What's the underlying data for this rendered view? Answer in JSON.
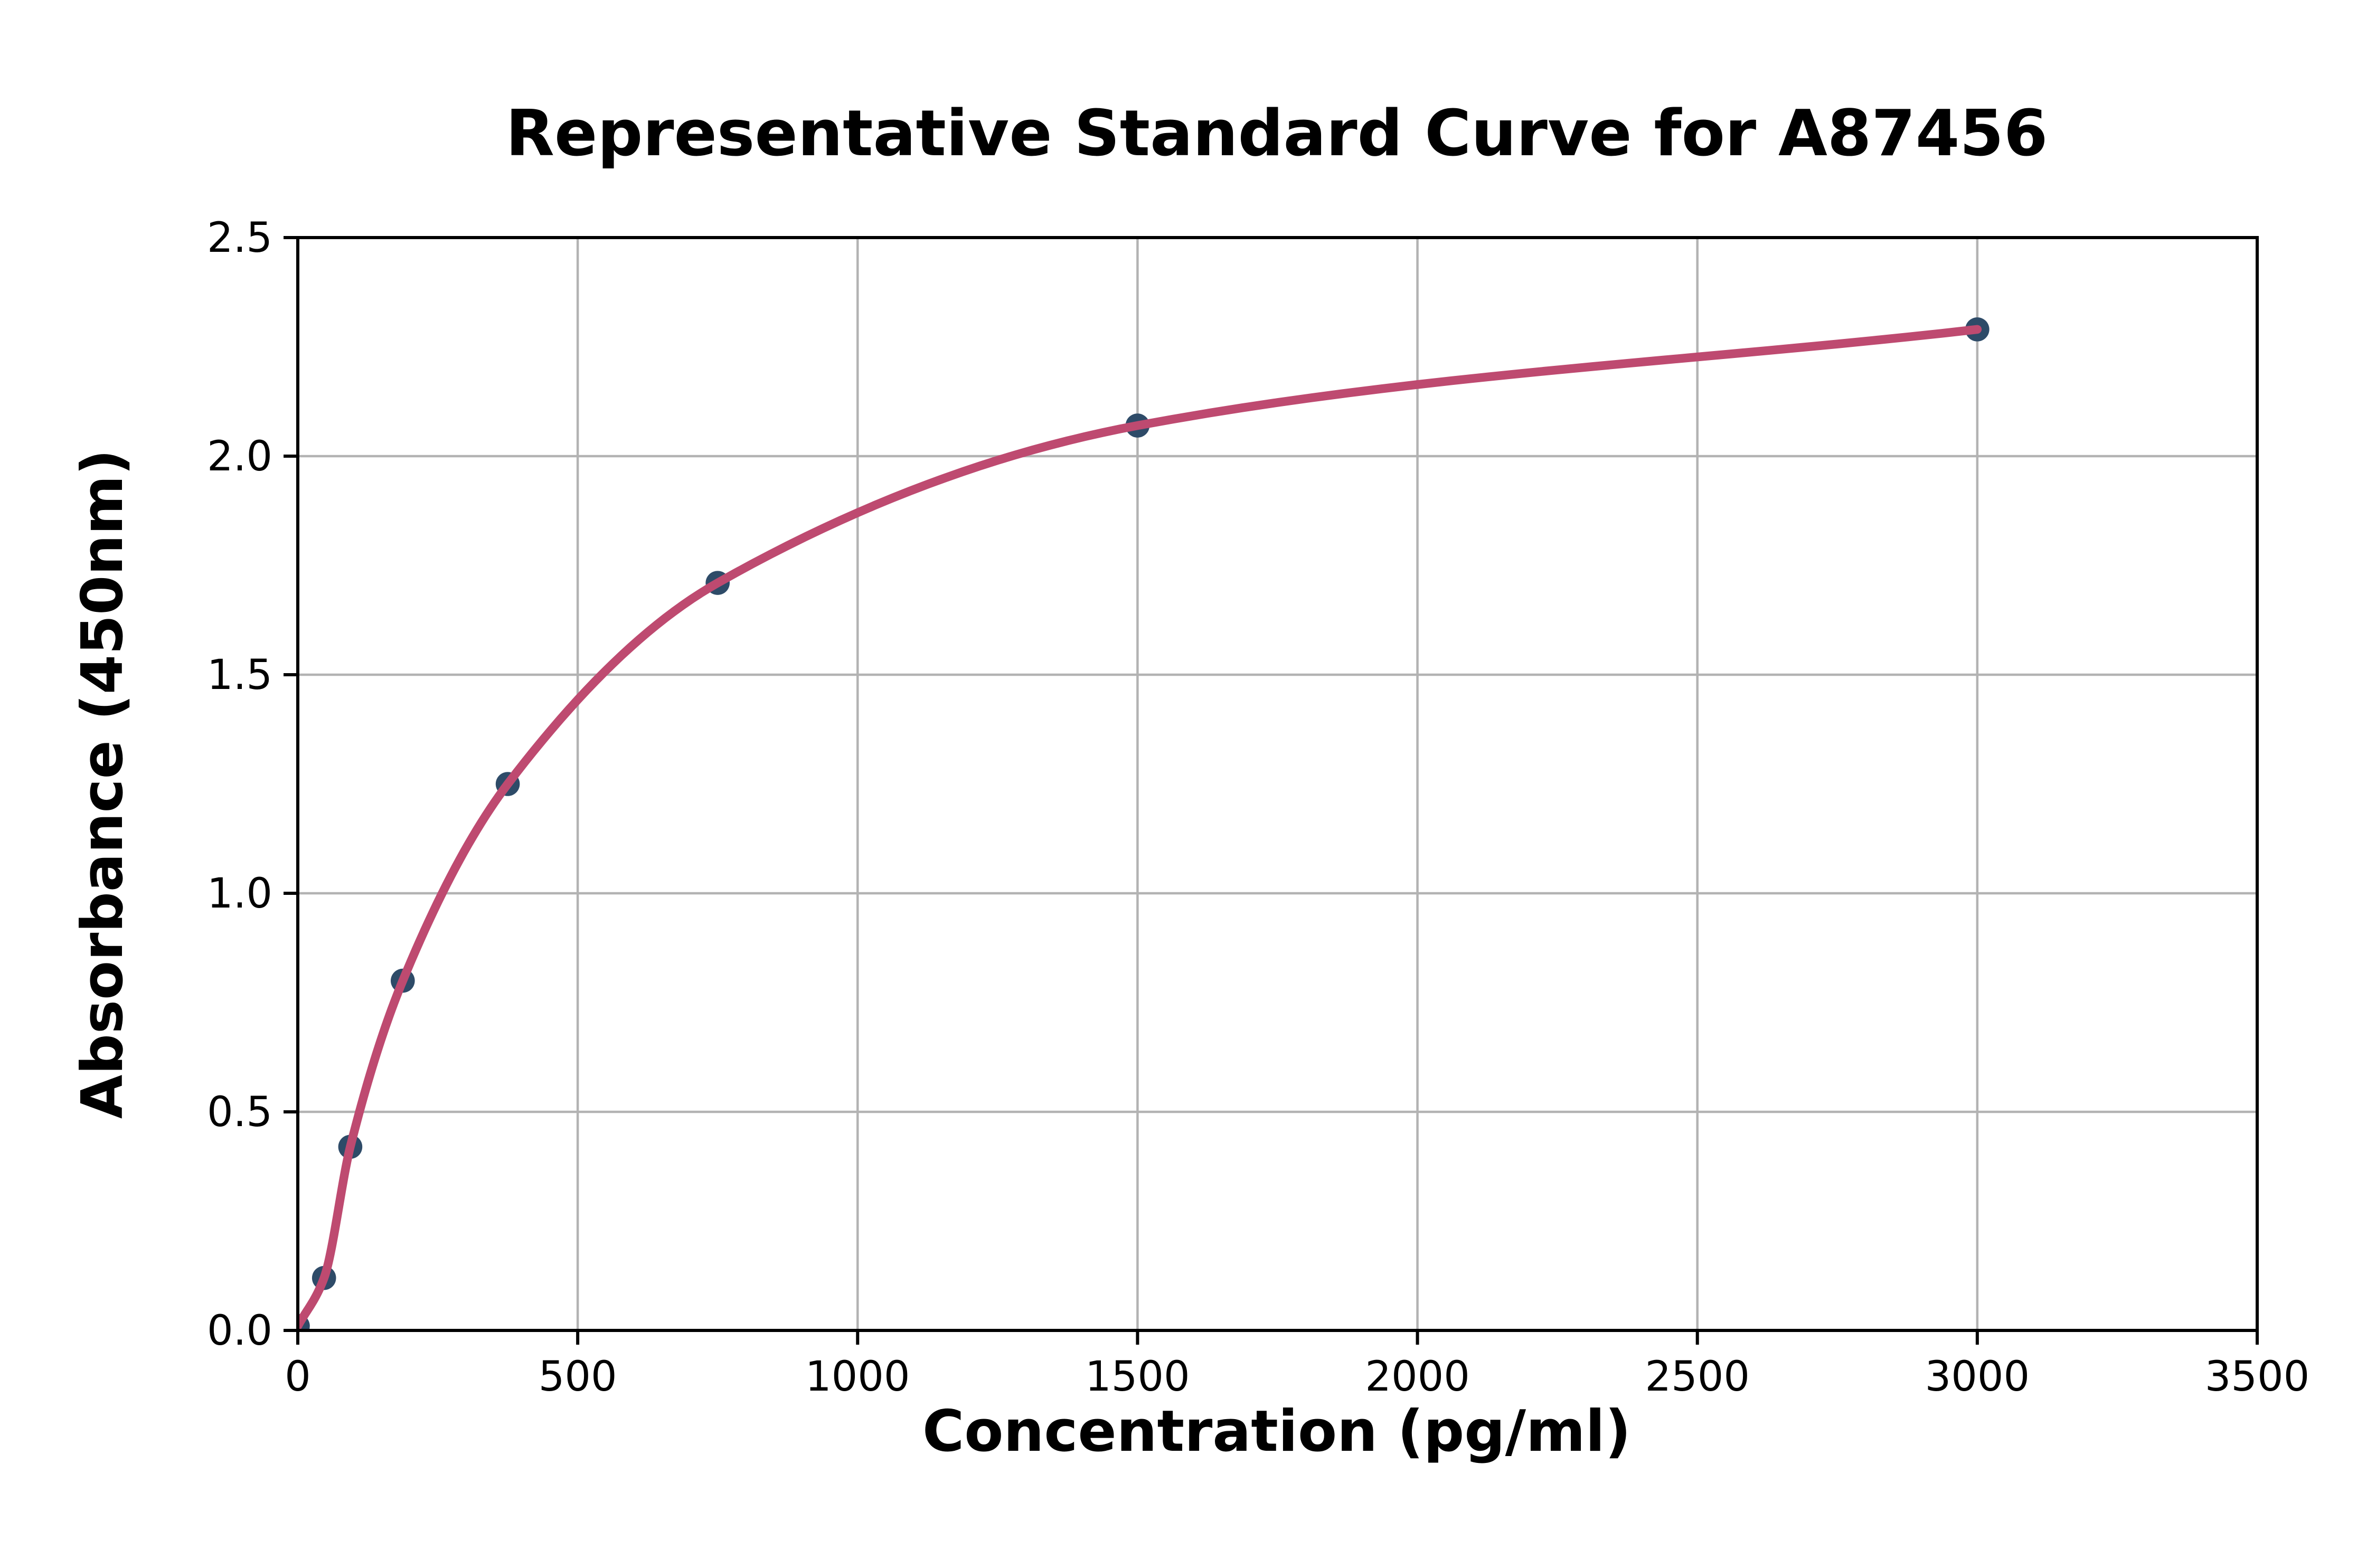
{
  "figure": {
    "background_color": "#ffffff"
  },
  "chart_data": {
    "type": "scatter",
    "title": "Representative Standard Curve for A87456",
    "xlabel": "Concentration (pg/ml)",
    "ylabel": "Absorbance (450nm)",
    "xlim": [
      0,
      3500
    ],
    "ylim": [
      0,
      2.5
    ],
    "xticks": [
      0,
      500,
      1000,
      1500,
      2000,
      2500,
      3000,
      3500
    ],
    "xticklabels": [
      "0",
      "500",
      "1000",
      "1500",
      "2000",
      "2500",
      "3000",
      "3500"
    ],
    "yticks": [
      0,
      0.5,
      1.0,
      1.5,
      2.0,
      2.5
    ],
    "yticklabels": [
      "0.0",
      "0.5",
      "1.0",
      "1.5",
      "2.0",
      "2.5"
    ],
    "grid": true,
    "legend_position": "none",
    "series": [
      {
        "name": "standard-points",
        "type": "scatter",
        "color": "#2e4b68",
        "points": [
          [
            0,
            0.01
          ],
          [
            46.88,
            0.12
          ],
          [
            93.75,
            0.42
          ],
          [
            187.5,
            0.8
          ],
          [
            375,
            1.25
          ],
          [
            750,
            1.71
          ],
          [
            1500,
            2.07
          ],
          [
            3000,
            2.29
          ]
        ]
      },
      {
        "name": "fitted-curve",
        "type": "line",
        "color": "#be4a70",
        "points": [
          [
            0,
            0.01
          ],
          [
            46.88,
            0.12
          ],
          [
            93.75,
            0.42
          ],
          [
            187.5,
            0.8
          ],
          [
            375,
            1.25
          ],
          [
            750,
            1.71
          ],
          [
            1500,
            2.07
          ],
          [
            3000,
            2.29
          ]
        ]
      }
    ],
    "colors": {
      "grid": "#b3b3b3",
      "spine": "#000000",
      "tick": "#000000",
      "text": "#000000"
    }
  }
}
